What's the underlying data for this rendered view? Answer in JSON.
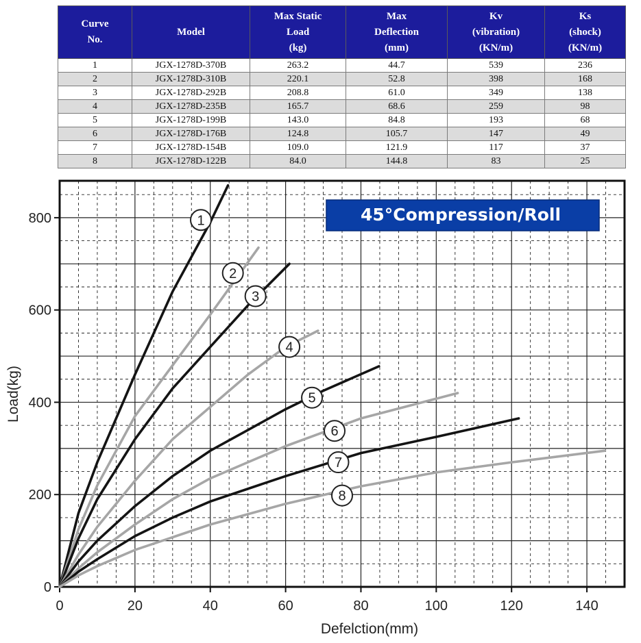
{
  "table": {
    "headers": [
      "Curve\nNo.",
      "Model",
      "Max Static\nLoad\n(kg)",
      "Max\nDeflection\n(mm)",
      "Kv\n(vibration)\n(KN/m)",
      "Ks\n(shock)\n(KN/m)"
    ],
    "rows": [
      [
        "1",
        "JGX-1278D-370B",
        "263.2",
        "44.7",
        "539",
        "236"
      ],
      [
        "2",
        "JGX-1278D-310B",
        "220.1",
        "52.8",
        "398",
        "168"
      ],
      [
        "3",
        "JGX-1278D-292B",
        "208.8",
        "61.0",
        "349",
        "138"
      ],
      [
        "4",
        "JGX-1278D-235B",
        "165.7",
        "68.6",
        "259",
        "98"
      ],
      [
        "5",
        "JGX-1278D-199B",
        "143.0",
        "84.8",
        "193",
        "68"
      ],
      [
        "6",
        "JGX-1278D-176B",
        "124.8",
        "105.7",
        "147",
        "49"
      ],
      [
        "7",
        "JGX-1278D-154B",
        "109.0",
        "121.9",
        "117",
        "37"
      ],
      [
        "8",
        "JGX-1278D-122B",
        "84.0",
        "144.8",
        "83",
        "25"
      ]
    ]
  },
  "chart_data": {
    "type": "line",
    "title": "45°Compression/Roll",
    "xlabel": "Defelction(mm)",
    "ylabel": "Load(kg)",
    "xlim": [
      0,
      150
    ],
    "ylim": [
      0,
      880
    ],
    "xticks": [
      0,
      20,
      40,
      60,
      80,
      100,
      120,
      140
    ],
    "yticks": [
      0,
      200,
      400,
      600,
      800
    ],
    "grid": "dashed",
    "colors": {
      "dark": "#141414",
      "light": "#a6a6a6",
      "title_bg": "#0a3ea6"
    },
    "series": [
      {
        "name": "1",
        "color": "dark",
        "label_at": [
          37.5,
          795
        ],
        "points": [
          [
            0,
            0
          ],
          [
            5,
            160
          ],
          [
            10,
            270
          ],
          [
            20,
            460
          ],
          [
            30,
            640
          ],
          [
            40,
            790
          ],
          [
            44.7,
            870
          ]
        ]
      },
      {
        "name": "2",
        "color": "light",
        "label_at": [
          46,
          680
        ],
        "points": [
          [
            0,
            0
          ],
          [
            5,
            125
          ],
          [
            10,
            220
          ],
          [
            20,
            370
          ],
          [
            30,
            480
          ],
          [
            40,
            590
          ],
          [
            52.8,
            735
          ]
        ]
      },
      {
        "name": "3",
        "color": "dark",
        "label_at": [
          52,
          630
        ],
        "points": [
          [
            0,
            0
          ],
          [
            5,
            105
          ],
          [
            10,
            190
          ],
          [
            20,
            320
          ],
          [
            30,
            430
          ],
          [
            40,
            520
          ],
          [
            50,
            610
          ],
          [
            61,
            700
          ]
        ]
      },
      {
        "name": "4",
        "color": "light",
        "label_at": [
          61,
          520
        ],
        "points": [
          [
            0,
            0
          ],
          [
            5,
            70
          ],
          [
            10,
            130
          ],
          [
            20,
            230
          ],
          [
            30,
            320
          ],
          [
            40,
            390
          ],
          [
            50,
            460
          ],
          [
            60,
            520
          ],
          [
            68.6,
            555
          ]
        ]
      },
      {
        "name": "5",
        "color": "dark",
        "label_at": [
          67,
          410
        ],
        "points": [
          [
            0,
            0
          ],
          [
            5,
            55
          ],
          [
            10,
            100
          ],
          [
            20,
            175
          ],
          [
            30,
            240
          ],
          [
            40,
            295
          ],
          [
            50,
            340
          ],
          [
            60,
            385
          ],
          [
            70,
            425
          ],
          [
            84.8,
            478
          ]
        ]
      },
      {
        "name": "6",
        "color": "light",
        "label_at": [
          73,
          338
        ],
        "points": [
          [
            0,
            0
          ],
          [
            5,
            40
          ],
          [
            10,
            75
          ],
          [
            20,
            135
          ],
          [
            30,
            190
          ],
          [
            40,
            235
          ],
          [
            60,
            305
          ],
          [
            80,
            365
          ],
          [
            105.7,
            420
          ]
        ]
      },
      {
        "name": "7",
        "color": "dark",
        "label_at": [
          74,
          270
        ],
        "points": [
          [
            0,
            0
          ],
          [
            5,
            33
          ],
          [
            10,
            60
          ],
          [
            20,
            110
          ],
          [
            30,
            150
          ],
          [
            40,
            185
          ],
          [
            60,
            240
          ],
          [
            80,
            290
          ],
          [
            100,
            325
          ],
          [
            121.9,
            365
          ]
        ]
      },
      {
        "name": "8",
        "color": "light",
        "label_at": [
          75,
          198
        ],
        "points": [
          [
            0,
            0
          ],
          [
            5,
            25
          ],
          [
            10,
            45
          ],
          [
            20,
            80
          ],
          [
            40,
            135
          ],
          [
            60,
            180
          ],
          [
            80,
            218
          ],
          [
            100,
            248
          ],
          [
            120,
            270
          ],
          [
            144.8,
            295
          ]
        ]
      }
    ]
  }
}
